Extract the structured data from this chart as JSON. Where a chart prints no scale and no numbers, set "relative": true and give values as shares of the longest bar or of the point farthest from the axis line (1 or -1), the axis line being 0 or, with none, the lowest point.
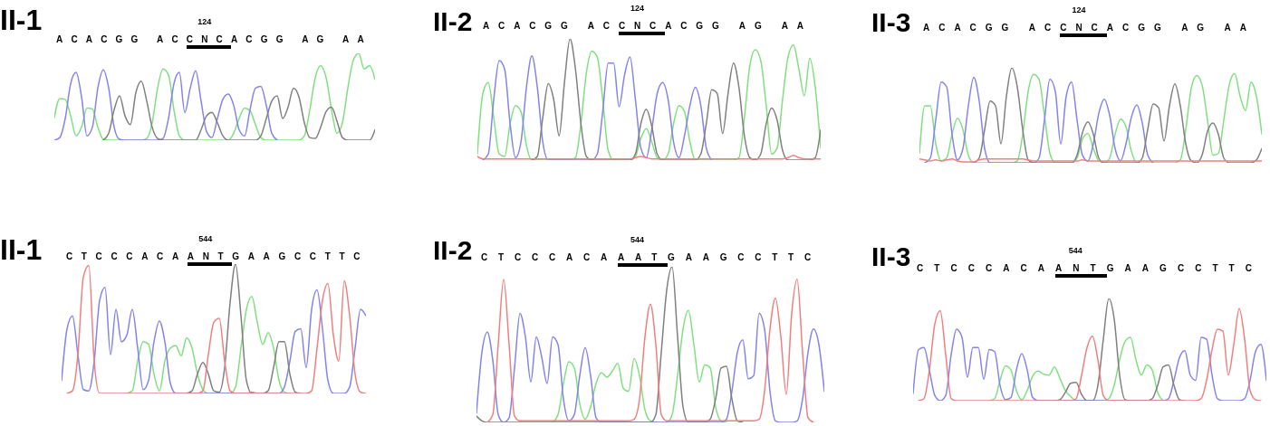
{
  "chart_data": [
    {
      "type": "line",
      "title": "II-1",
      "relative": true,
      "annotations": [
        "ACACGG AC",
        "CNC",
        "ACGG AG AA",
        "124"
      ],
      "categories": [
        null,
        null,
        null,
        null,
        null,
        null,
        null,
        null,
        null,
        null,
        null,
        null,
        null,
        null,
        null,
        null,
        null,
        null,
        null,
        null,
        null,
        null,
        null,
        null,
        null,
        null,
        null,
        null,
        null,
        null,
        null,
        null,
        null,
        null,
        null,
        null,
        null,
        null,
        null,
        null,
        null,
        null,
        null,
        null,
        null,
        null,
        null,
        null,
        null,
        null,
        null,
        null,
        null,
        null,
        null,
        null,
        null,
        null,
        null,
        null
      ],
      "series": [
        {
          "color": "#80e080",
          "values": [
            0.26,
            0.48,
            0.47,
            0.28,
            0.05,
            0.15,
            0.37,
            0.36,
            0.15,
            0.01,
            0,
            0,
            0,
            0,
            0,
            0,
            0,
            0.02,
            0.2,
            0.6,
            0.82,
            0.75,
            0.35,
            0.05,
            0,
            0,
            0,
            0,
            0,
            0,
            0,
            0,
            0,
            0.08,
            0.25,
            0.37,
            0.34,
            0.18,
            0.03,
            0,
            0,
            0,
            0,
            0,
            0,
            0,
            0.05,
            0.35,
            0.72,
            0.86,
            0.72,
            0.35,
            0.08,
            0.2,
            0.6,
            0.92,
            1,
            0.82,
            0.86,
            0.7
          ]
        },
        {
          "color": "#8484ec",
          "values": [
            0,
            0.03,
            0.25,
            0.65,
            0.78,
            0.5,
            0.05,
            0.15,
            0.6,
            0.81,
            0.6,
            0.15,
            0.01,
            0,
            0,
            0,
            0,
            0,
            0,
            0,
            0.02,
            0.25,
            0.65,
            0.78,
            0.32,
            0.6,
            0.8,
            0.45,
            0.1,
            0.03,
            0.25,
            0.47,
            0.53,
            0.4,
            0.12,
            0.05,
            0.35,
            0.6,
            0.62,
            0.4,
            0.08,
            0,
            null,
            null,
            null,
            null,
            null,
            null,
            null,
            null,
            null,
            null,
            null,
            null,
            null,
            null,
            null,
            null,
            null,
            null
          ]
        },
        {
          "color": "#808080",
          "values": [
            null,
            null,
            null,
            null,
            null,
            null,
            null,
            null,
            null,
            0,
            0.08,
            0.35,
            0.51,
            0.28,
            0.18,
            0.55,
            0.68,
            0.45,
            0.15,
            0.02,
            0,
            0,
            0,
            0,
            0,
            0,
            0,
            0.12,
            0.28,
            0.32,
            0.2,
            0.05,
            0,
            0,
            0,
            0,
            0,
            0,
            0.05,
            0.25,
            0.45,
            0.51,
            0.25,
            0.38,
            0.6,
            0.5,
            0.2,
            0.03,
            0.02,
            0.15,
            0.33,
            0.38,
            0.22,
            0.03,
            0,
            0,
            0,
            0,
            0,
            0.12
          ]
        }
      ]
    },
    {
      "type": "line",
      "title": "II-2",
      "relative": true,
      "annotations": [
        "ACACGG AC",
        "CNC",
        "ACGG AG AA",
        "124"
      ],
      "categories": [
        null,
        null,
        null,
        null,
        null,
        null,
        null,
        null,
        null,
        null,
        null,
        null,
        null,
        null,
        null,
        null,
        null,
        null,
        null,
        null,
        null,
        null,
        null,
        null,
        null,
        null,
        null,
        null,
        null,
        null,
        null,
        null,
        null,
        null,
        null,
        null,
        null,
        null,
        null,
        null,
        null,
        null,
        null,
        null,
        null,
        null,
        null,
        null,
        null,
        null,
        null,
        null,
        null,
        null,
        null,
        null,
        null,
        null,
        null,
        null,
        null,
        null,
        null,
        null
      ],
      "series": [
        {
          "color": "#80e080",
          "values": [
            0.05,
            0.55,
            0.64,
            0.35,
            0.05,
            0.03,
            0.3,
            0.45,
            0.4,
            0.12,
            0,
            0,
            0,
            0,
            0,
            0,
            0,
            0,
            0.02,
            0.3,
            0.72,
            0.9,
            0.85,
            0.5,
            0.08,
            0,
            0,
            0,
            0,
            0.03,
            0.18,
            0.26,
            0.15,
            0.02,
            0,
            0.05,
            0.3,
            0.45,
            0.4,
            0.15,
            0,
            0,
            0,
            0,
            0,
            0,
            0,
            0,
            0.02,
            0.35,
            0.78,
            0.91,
            0.82,
            0.45,
            0.05,
            0.1,
            0.5,
            0.85,
            0.95,
            0.75,
            0.53,
            0.84,
            0.6,
            0.1
          ]
        },
        {
          "color": "#8484ec",
          "values": [
            null,
            0,
            0.05,
            0.5,
            0.82,
            0.75,
            0.3,
            0.02,
            0.15,
            0.6,
            0.86,
            0.6,
            0.15,
            0,
            0,
            0,
            0,
            0,
            0,
            0,
            0,
            0,
            0.05,
            0.4,
            0.8,
            0.8,
            0.44,
            0.7,
            0.85,
            0.5,
            0.1,
            0.02,
            0.25,
            0.55,
            0.64,
            0.5,
            0.15,
            0.02,
            0.2,
            0.45,
            0.6,
            0.45,
            0.1,
            0,
            null,
            null,
            null,
            null,
            null,
            null,
            null,
            null,
            null,
            null,
            null,
            null,
            null,
            null,
            null,
            null,
            null,
            null,
            null,
            null
          ]
        },
        {
          "color": "#808080",
          "values": [
            null,
            null,
            null,
            null,
            null,
            null,
            null,
            null,
            null,
            null,
            0,
            0.03,
            0.35,
            0.63,
            0.5,
            0.2,
            0.65,
            1,
            0.75,
            0.3,
            0.03,
            0,
            0,
            0,
            0,
            0,
            0,
            0,
            0,
            0.05,
            0.3,
            0.42,
            0.28,
            0.05,
            0,
            0,
            0,
            0,
            0,
            0,
            0,
            0.05,
            0.3,
            0.58,
            0.55,
            0.22,
            0.55,
            0.8,
            0.6,
            0.2,
            0.02,
            0,
            0.05,
            0.3,
            0.43,
            0.33,
            0.08,
            0,
            0,
            0,
            0,
            0,
            0.02,
            0.25
          ]
        },
        {
          "color": "#f08080",
          "values": [
            0.03,
            0.01,
            0.01,
            0.01,
            0.01,
            0.01,
            0.01,
            0.01,
            0.01,
            0.01,
            0.01,
            0.01,
            0.01,
            0.01,
            0.01,
            0.01,
            0.01,
            0.01,
            0.01,
            0.01,
            0.01,
            0.01,
            0.01,
            0.01,
            0.01,
            0.01,
            0.01,
            0.01,
            0.01,
            0.02,
            0.03,
            0.02,
            0.01,
            0.01,
            0.01,
            0.01,
            0.01,
            0.01,
            0.01,
            0.01,
            0.01,
            0.01,
            0.01,
            0.01,
            0.01,
            0.01,
            0.01,
            0.01,
            0.01,
            0.01,
            0.01,
            0.01,
            0.01,
            0.01,
            0.01,
            0.01,
            0.01,
            0.02,
            0.04,
            0.02,
            0.01,
            0.01,
            0.01,
            0.01
          ]
        }
      ]
    },
    {
      "type": "line",
      "title": "II-3",
      "relative": true,
      "annotations": [
        "ACACGG AC",
        "CNC",
        "ACGG AG AA",
        "124"
      ],
      "categories": [
        null,
        null,
        null,
        null,
        null,
        null,
        null,
        null,
        null,
        null,
        null,
        null,
        null,
        null,
        null,
        null,
        null,
        null,
        null,
        null,
        null,
        null,
        null,
        null,
        null,
        null,
        null,
        null,
        null,
        null,
        null,
        null,
        null,
        null,
        null,
        null,
        null,
        null,
        null,
        null,
        null,
        null,
        null,
        null,
        null,
        null,
        null,
        null,
        null,
        null,
        null,
        null,
        null,
        null,
        null,
        null,
        null,
        null,
        null,
        null,
        null,
        null,
        null,
        null
      ],
      "series": [
        {
          "color": "#80e080",
          "values": [
            0.1,
            0.6,
            0.6,
            0.2,
            0.02,
            0.05,
            0.3,
            0.47,
            0.35,
            0.08,
            0,
            0,
            0,
            0,
            0,
            0,
            0,
            0,
            0.02,
            0.3,
            0.75,
            0.93,
            0.88,
            0.5,
            0.1,
            0,
            0,
            0,
            0,
            0.05,
            0.25,
            0.31,
            0.15,
            0.02,
            0,
            0.05,
            0.3,
            0.46,
            0.38,
            0.12,
            0,
            0,
            0,
            0,
            0,
            0,
            0,
            0,
            0.03,
            0.35,
            0.78,
            0.92,
            0.82,
            0.45,
            0.08,
            0.1,
            0.45,
            0.82,
            0.94,
            0.7,
            0.55,
            0.85,
            0.7,
            0.3
          ]
        },
        {
          "color": "#8484ec",
          "values": [
            null,
            0,
            0.05,
            0.45,
            0.85,
            0.8,
            0.3,
            0.03,
            0.15,
            0.6,
            0.9,
            0.65,
            0.15,
            0,
            0,
            0,
            0,
            0,
            0,
            0,
            0,
            0,
            0.05,
            0.45,
            0.88,
            0.75,
            0.2,
            0.7,
            0.85,
            0.45,
            0.08,
            0.02,
            0.2,
            0.52,
            0.67,
            0.5,
            0.15,
            0.02,
            0.2,
            0.48,
            0.61,
            0.42,
            0.08,
            0,
            null,
            null,
            null,
            null,
            null,
            null,
            null,
            null,
            null,
            null,
            null,
            null,
            null,
            null,
            null,
            null,
            null,
            null,
            null,
            null
          ]
        },
        {
          "color": "#808080",
          "values": [
            null,
            null,
            null,
            null,
            null,
            null,
            null,
            null,
            null,
            null,
            0,
            0.05,
            0.35,
            0.65,
            0.6,
            0.2,
            0.7,
            1,
            0.8,
            0.35,
            0.03,
            0,
            0,
            0,
            0,
            0,
            0,
            0,
            0,
            0.08,
            0.32,
            0.43,
            0.3,
            0.05,
            0,
            0,
            0,
            0,
            0,
            0,
            0,
            0.05,
            0.35,
            0.62,
            0.58,
            0.23,
            0.6,
            0.83,
            0.6,
            0.2,
            0.02,
            0,
            0.08,
            0.33,
            0.42,
            0.3,
            0.05,
            0,
            0,
            0,
            0,
            0,
            0.03,
            0.15
          ]
        },
        {
          "color": "#f08080",
          "values": [
            0.04,
            0.03,
            0.02,
            0.03,
            0.02,
            0.03,
            0.04,
            0.02,
            0.01,
            0.01,
            0.01,
            0.03,
            0.04,
            0.04,
            0.04,
            0.04,
            0.04,
            0.04,
            0.04,
            0.04,
            0.03,
            0.02,
            0.02,
            0.02,
            0.02,
            0.02,
            0.02,
            0.02,
            0.02,
            0.02,
            0.03,
            0.02,
            0.02,
            0.02,
            0.02,
            0.02,
            0.02,
            0.02,
            0.02,
            0.02,
            0.02,
            0.02,
            0.02,
            0.02,
            0.02,
            0.02,
            0.02,
            0.02,
            0.02,
            0.02,
            0.02,
            0.02,
            0.02,
            0.02,
            0.02,
            0.02,
            0.02,
            0.02,
            0.02,
            0.02,
            0.02,
            0.02,
            0.02,
            0.02
          ]
        }
      ]
    },
    {
      "type": "line",
      "title": "II-1",
      "relative": true,
      "annotations": [
        "CTCCCACA",
        "ANT",
        "GAAGCCTTC",
        "544"
      ],
      "categories": [
        null,
        null,
        null,
        null,
        null,
        null,
        null,
        null,
        null,
        null,
        null,
        null,
        null,
        null,
        null,
        null,
        null,
        null,
        null,
        null,
        null,
        null,
        null,
        null,
        null,
        null,
        null,
        null,
        null,
        null,
        null,
        null,
        null,
        null,
        null,
        null,
        null,
        null,
        null,
        null,
        null,
        null,
        null,
        null,
        null,
        null,
        null,
        null,
        null,
        null,
        null,
        null,
        null,
        null,
        null,
        null,
        null
      ],
      "series": [
        {
          "color": "#80e080",
          "values": [
            null,
            null,
            null,
            null,
            null,
            null,
            null,
            null,
            null,
            null,
            null,
            null,
            0,
            0.02,
            0.25,
            0.4,
            0.38,
            0.15,
            0.02,
            0.25,
            0.35,
            0.37,
            0.29,
            0.43,
            0.35,
            0.15,
            0.03,
            0,
            0,
            0,
            0,
            0,
            0.05,
            0.35,
            0.65,
            0.75,
            0.55,
            0.38,
            0.47,
            0.35,
            0.1,
            0.01,
            0,
            null,
            null,
            null,
            null,
            null,
            null,
            null,
            null,
            null,
            null,
            null,
            null,
            null,
            null
          ]
        },
        {
          "color": "#8484ec",
          "values": [
            0.1,
            0.5,
            0.6,
            0.3,
            0.03,
            0.02,
            0.25,
            0.72,
            0.82,
            0.3,
            0.65,
            0.4,
            0.45,
            0.65,
            0.35,
            0.03,
            0.1,
            0.4,
            0.56,
            0.4,
            0.08,
            0,
            0,
            0,
            0,
            0,
            0,
            0,
            0,
            0,
            0,
            0,
            0,
            0,
            0,
            0,
            0,
            0,
            0,
            0,
            0,
            0.05,
            0.25,
            0.48,
            0.5,
            0.2,
            0.65,
            0.8,
            0.5,
            0.1,
            0,
            0,
            0,
            0.05,
            0.35,
            0.65,
            0.6
          ]
        },
        {
          "color": "#808080",
          "values": [
            null,
            null,
            null,
            null,
            null,
            null,
            null,
            null,
            null,
            null,
            null,
            null,
            null,
            null,
            null,
            null,
            null,
            null,
            null,
            null,
            null,
            null,
            null,
            0,
            0.02,
            0.15,
            0.24,
            0.15,
            0.02,
            0.01,
            0.2,
            0.7,
            1,
            0.6,
            0.1,
            0,
            0,
            0,
            0.02,
            0.2,
            0.4,
            0.4,
            0.15,
            0.01,
            0,
            null,
            null,
            null,
            null,
            null,
            null,
            null,
            null,
            null,
            null,
            null,
            null
          ]
        },
        {
          "color": "#f08080",
          "values": [
            null,
            0,
            0.02,
            0.3,
            0.9,
            0.99,
            0.25,
            0,
            0,
            0,
            0,
            0,
            0,
            0,
            0,
            0,
            0,
            0,
            0,
            0,
            0,
            0,
            0,
            0,
            0,
            0,
            0.02,
            0.3,
            0.55,
            0.58,
            0.25,
            0.02,
            0,
            0,
            0,
            0.01,
            0,
            0,
            0,
            0,
            0,
            0,
            0,
            0,
            0,
            0,
            0.02,
            0.35,
            0.72,
            0.85,
            0.45,
            0.25,
            0.87,
            0.6,
            0.15,
            0.01,
            0
          ]
        }
      ]
    },
    {
      "type": "line",
      "title": "II-2",
      "relative": true,
      "annotations": [
        "CTCCCACA",
        "AAT",
        "GAAGCCTTC",
        "544"
      ],
      "categories": [
        null,
        null,
        null,
        null,
        null,
        null,
        null,
        null,
        null,
        null,
        null,
        null,
        null,
        null,
        null,
        null,
        null,
        null,
        null,
        null,
        null,
        null,
        null,
        null,
        null,
        null,
        null,
        null,
        null,
        null,
        null,
        null,
        null,
        null,
        null,
        null,
        null,
        null,
        null,
        null,
        null,
        null,
        null,
        null,
        null,
        null,
        null,
        null,
        null,
        null,
        null,
        null,
        null,
        null,
        null,
        null,
        null,
        null,
        null,
        null,
        null,
        null,
        null,
        null,
        null
      ],
      "series": [
        {
          "color": "#80e080",
          "values": [
            null,
            null,
            null,
            null,
            null,
            null,
            null,
            null,
            null,
            null,
            null,
            null,
            null,
            null,
            0,
            0.05,
            0.25,
            0.39,
            0.35,
            0.12,
            0.02,
            0.1,
            0.25,
            0.32,
            0.29,
            0.33,
            0.38,
            0.22,
            0.2,
            0.41,
            0.3,
            0.08,
            0.01,
            0,
            0,
            0,
            0.05,
            0.3,
            0.6,
            0.72,
            0.5,
            0.26,
            0.37,
            0.35,
            0.1,
            0.01,
            0,
            null,
            null,
            null,
            null,
            null,
            null,
            null,
            null,
            null,
            null,
            null,
            null,
            null,
            null,
            null,
            null,
            null,
            null
          ]
        },
        {
          "color": "#8484ec",
          "values": [
            0.06,
            0.45,
            0.58,
            0.4,
            0.05,
            0,
            0.03,
            0.35,
            0.7,
            0.55,
            0.26,
            0.55,
            0.42,
            0.25,
            0.55,
            0.5,
            0.15,
            0.01,
            0.05,
            0.3,
            0.48,
            0.3,
            0.03,
            0,
            0,
            0,
            0,
            0,
            0,
            0,
            0,
            0,
            0,
            0,
            0,
            0,
            0,
            0,
            0,
            0,
            0,
            0,
            0,
            0,
            0,
            0,
            0.02,
            0.2,
            0.45,
            0.53,
            0.28,
            0.3,
            0.7,
            0.6,
            0.2,
            0.01,
            0,
            0,
            0,
            0.01,
            0.15,
            0.45,
            0.6,
            0.5,
            0.2
          ]
        },
        {
          "color": "#808080",
          "values": [
            0.04,
            0.01,
            0,
            0,
            0,
            0,
            0,
            0,
            0,
            0,
            0,
            0,
            0,
            0,
            0,
            0,
            0,
            0,
            0,
            0,
            0,
            0,
            0,
            0,
            0,
            0,
            0,
            0,
            0,
            0,
            0,
            0,
            0,
            0.05,
            0.45,
            0.85,
            1,
            0.55,
            0.1,
            0,
            0,
            0,
            0,
            0.02,
            0.15,
            0.35,
            0.36,
            0.15,
            0.01,
            0,
            null,
            null,
            null,
            null,
            null,
            null,
            null,
            null,
            null,
            null,
            null,
            null,
            null,
            null,
            null
          ]
        },
        {
          "color": "#f08080",
          "values": [
            null,
            null,
            0,
            0.05,
            0.5,
            0.92,
            0.5,
            0.04,
            0.01,
            0.01,
            0.01,
            0.01,
            0.01,
            0.01,
            0.01,
            0.01,
            0.01,
            0.01,
            0.01,
            0.01,
            0.01,
            0.01,
            0.01,
            0.01,
            0.01,
            0.01,
            0.01,
            0.01,
            0.01,
            0.02,
            0.15,
            0.55,
            0.76,
            0.5,
            0.05,
            0.01,
            0.01,
            0.01,
            0.01,
            0.01,
            0.01,
            0.01,
            0.01,
            0.01,
            0.01,
            0.01,
            0.01,
            0.01,
            0.01,
            0.01,
            0.01,
            0.01,
            0.02,
            0.2,
            0.6,
            0.8,
            0.55,
            0.18,
            0.7,
            0.92,
            0.45,
            0.03,
            0,
            null,
            null
          ]
        }
      ]
    },
    {
      "type": "line",
      "title": "II-3",
      "relative": true,
      "annotations": [
        "CTCCCACA",
        "ANT",
        "GAAGCCTTC",
        "544"
      ],
      "categories": [
        null,
        null,
        null,
        null,
        null,
        null,
        null,
        null,
        null,
        null,
        null,
        null,
        null,
        null,
        null,
        null,
        null,
        null,
        null,
        null,
        null,
        null,
        null,
        null,
        null,
        null,
        null,
        null,
        null,
        null,
        null,
        null,
        null,
        null,
        null,
        null,
        null,
        null,
        null,
        null,
        null,
        null,
        null,
        null,
        null,
        null,
        null,
        null,
        null,
        null,
        null,
        null,
        null,
        null,
        null,
        null,
        null,
        null,
        null,
        null,
        null,
        null,
        null,
        null,
        null,
        null
      ],
      "series": [
        {
          "color": "#80e080",
          "values": [
            null,
            null,
            null,
            null,
            null,
            null,
            null,
            null,
            null,
            null,
            null,
            null,
            null,
            null,
            0,
            0.02,
            0.2,
            0.34,
            0.3,
            0.1,
            0.01,
            0.1,
            0.24,
            0.29,
            0.26,
            0.25,
            0.33,
            0.22,
            0.1,
            0.04,
            0,
            0,
            0,
            0,
            0,
            0,
            0.02,
            0.15,
            0.4,
            0.58,
            0.62,
            0.4,
            0.25,
            0.35,
            0.3,
            0.08,
            0,
            null,
            null,
            null,
            null,
            null,
            null,
            null,
            null,
            null,
            null,
            null,
            null,
            null,
            null,
            null,
            null,
            null,
            null,
            null
          ]
        },
        {
          "color": "#8484ec",
          "values": [
            0.07,
            0.5,
            0.52,
            0.3,
            0.05,
            0,
            0.05,
            0.45,
            0.7,
            0.62,
            0.23,
            0.52,
            0.52,
            0.21,
            0.5,
            0.48,
            0.15,
            0.01,
            0.03,
            0.3,
            0.46,
            0.3,
            0.03,
            0,
            0,
            0,
            0,
            0,
            0,
            0,
            0,
            0,
            0,
            0,
            0,
            0,
            0,
            0,
            0,
            0,
            0,
            0,
            0,
            0,
            0,
            0,
            0,
            0.02,
            0.2,
            0.42,
            0.49,
            0.25,
            0.2,
            0.62,
            0.6,
            0.25,
            0.02,
            0,
            0,
            0,
            0,
            0.02,
            0.2,
            0.48,
            0.55,
            0.2
          ]
        },
        {
          "color": "#808080",
          "values": [
            null,
            null,
            null,
            null,
            null,
            null,
            null,
            null,
            null,
            null,
            null,
            null,
            null,
            null,
            null,
            null,
            null,
            null,
            null,
            null,
            null,
            null,
            null,
            null,
            null,
            null,
            0,
            0.01,
            0.08,
            0.17,
            0.18,
            0.06,
            0,
            0,
            0.15,
            0.6,
            1,
            0.8,
            0.25,
            0.01,
            0,
            0,
            0,
            0,
            0.02,
            0.15,
            0.33,
            0.35,
            0.15,
            0.01,
            0,
            null,
            null,
            null,
            null,
            null,
            null,
            null,
            null,
            null,
            null,
            null,
            null,
            null,
            null,
            null
          ]
        },
        {
          "color": "#f08080",
          "values": [
            null,
            0,
            0.02,
            0.3,
            0.75,
            0.88,
            0.45,
            0.02,
            0,
            0,
            0,
            0,
            0,
            0,
            0,
            0,
            0,
            0,
            0,
            0,
            0,
            0,
            0,
            0,
            0,
            0,
            0,
            0,
            0,
            0,
            0.02,
            0.25,
            0.52,
            0.63,
            0.4,
            0.05,
            0,
            0,
            0,
            0,
            0,
            0,
            0,
            0,
            0,
            0,
            0,
            0,
            0,
            0,
            0,
            0,
            0,
            0.02,
            0.2,
            0.5,
            0.7,
            0.68,
            0.25,
            0.55,
            0.9,
            0.6,
            0.1,
            0.01,
            0,
            null
          ]
        }
      ]
    }
  ]
}
